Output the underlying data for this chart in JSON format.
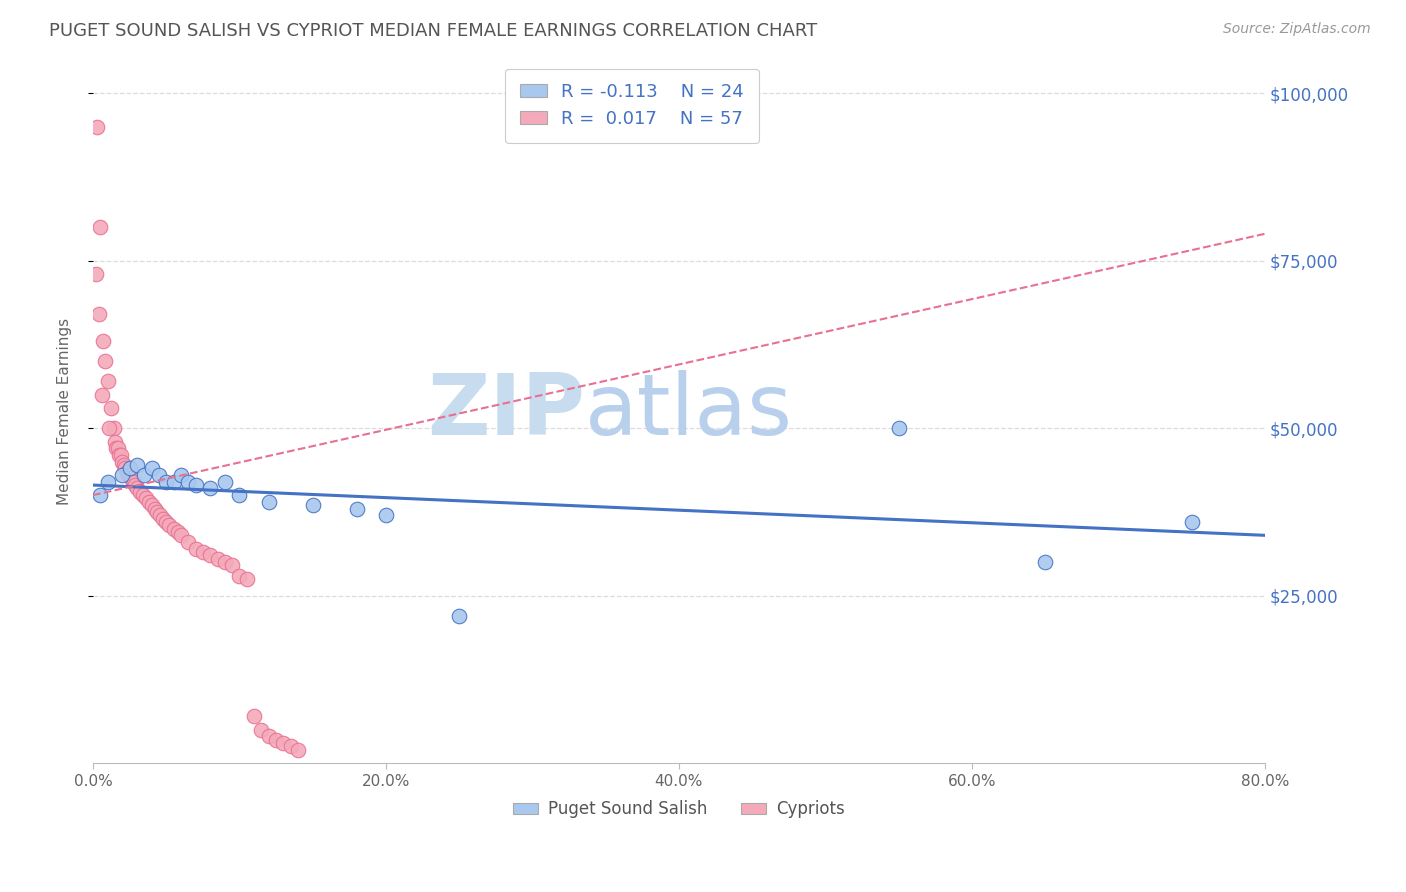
{
  "title": "PUGET SOUND SALISH VS CYPRIOT MEDIAN FEMALE EARNINGS CORRELATION CHART",
  "source": "Source: ZipAtlas.com",
  "ylabel": "Median Female Earnings",
  "legend_label1": "Puget Sound Salish",
  "legend_label2": "Cypriots",
  "r1": -0.113,
  "n1": 24,
  "r2": 0.017,
  "n2": 57,
  "color_blue": "#A8C8EE",
  "color_pink": "#F4AABB",
  "color_blue_dark": "#4472C4",
  "color_pink_dark": "#E87090",
  "watermark": "ZIPatlas",
  "watermark_color": "#D8E8F4",
  "blue_points_x": [
    0.5,
    1.0,
    2.0,
    2.5,
    3.0,
    3.5,
    4.0,
    4.5,
    5.0,
    5.5,
    6.0,
    6.5,
    7.0,
    8.0,
    9.0,
    10.0,
    12.0,
    15.0,
    18.0,
    20.0,
    25.0,
    55.0,
    65.0,
    75.0
  ],
  "blue_points_y": [
    40000,
    42000,
    43000,
    44000,
    44500,
    43000,
    44000,
    43000,
    42000,
    42000,
    43000,
    42000,
    41500,
    41000,
    42000,
    40000,
    39000,
    38500,
    38000,
    37000,
    22000,
    50000,
    30000,
    36000
  ],
  "pink_points_x": [
    0.3,
    0.5,
    0.7,
    0.8,
    1.0,
    1.2,
    1.4,
    1.5,
    1.6,
    1.7,
    1.8,
    1.9,
    2.0,
    2.1,
    2.2,
    2.3,
    2.4,
    2.5,
    2.6,
    2.7,
    2.8,
    2.9,
    3.0,
    3.2,
    3.4,
    3.6,
    3.8,
    4.0,
    4.2,
    4.4,
    4.6,
    4.8,
    5.0,
    5.2,
    5.5,
    5.8,
    6.0,
    6.5,
    7.0,
    7.5,
    8.0,
    8.5,
    9.0,
    9.5,
    10.0,
    10.5,
    11.0,
    11.5,
    12.0,
    12.5,
    13.0,
    13.5,
    14.0,
    0.2,
    0.4,
    0.6,
    1.1
  ],
  "pink_points_y": [
    95000,
    80000,
    63000,
    60000,
    57000,
    53000,
    50000,
    48000,
    47000,
    47000,
    46000,
    46000,
    45000,
    44500,
    44000,
    43500,
    43000,
    43000,
    42500,
    42000,
    42000,
    41500,
    41000,
    40500,
    40000,
    39500,
    39000,
    38500,
    38000,
    37500,
    37000,
    36500,
    36000,
    35500,
    35000,
    34500,
    34000,
    33000,
    32000,
    31500,
    31000,
    30500,
    30000,
    29500,
    28000,
    27500,
    7000,
    5000,
    4000,
    3500,
    3000,
    2500,
    2000,
    73000,
    67000,
    55000,
    50000
  ],
  "blue_trend_x": [
    0,
    80
  ],
  "blue_trend_y": [
    41500,
    34000
  ],
  "pink_trend_x": [
    0,
    80
  ],
  "pink_trend_y": [
    40000,
    79000
  ],
  "xlim": [
    0,
    80
  ],
  "ylim": [
    0,
    105000
  ],
  "xticks": [
    0,
    20,
    40,
    60,
    80
  ],
  "xticklabels": [
    "0.0%",
    "20.0%",
    "40.0%",
    "60.0%",
    "80.0%"
  ],
  "y_tick_values": [
    25000,
    50000,
    75000,
    100000
  ],
  "y_tick_labels": [
    "$25,000",
    "$50,000",
    "$75,000",
    "$100,000"
  ],
  "background_color": "#FFFFFF",
  "grid_color": "#DDDDDD"
}
